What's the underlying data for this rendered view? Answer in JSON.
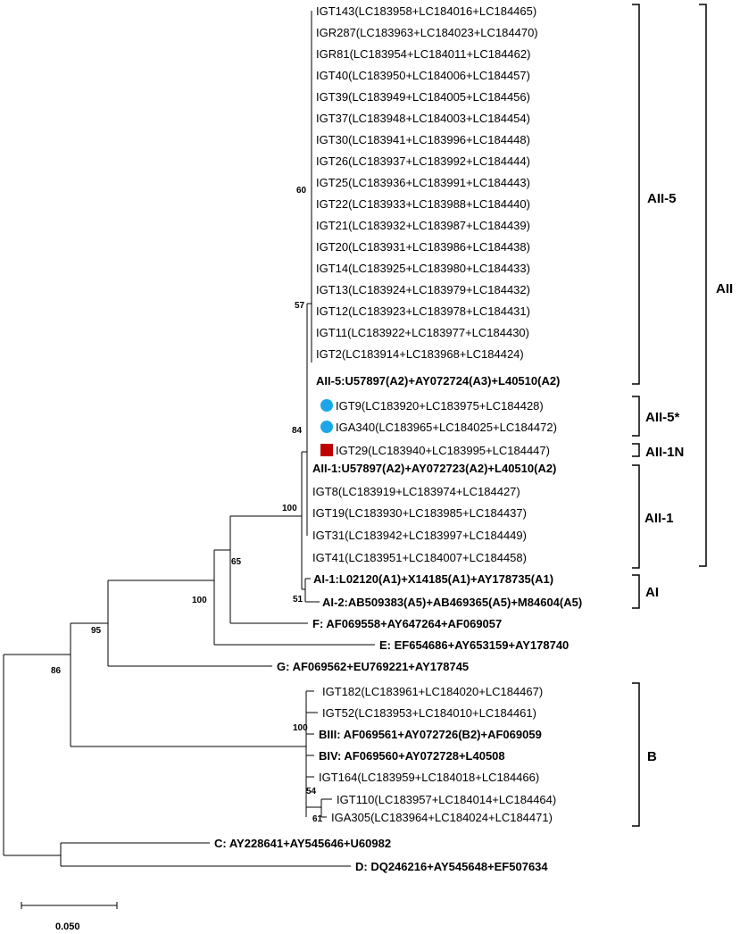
{
  "tree": {
    "leaves": [
      {
        "label": "IGT143(LC183958+LC184016+LC184465)",
        "bold": false
      },
      {
        "label": "IGR287(LC183963+LC184023+LC184470)",
        "bold": false
      },
      {
        "label": "IGR81(LC183954+LC184011+LC184462)",
        "bold": false
      },
      {
        "label": "IGT40(LC183950+LC184006+LC184457)",
        "bold": false
      },
      {
        "label": "IGT39(LC183949+LC184005+LC184456)",
        "bold": false
      },
      {
        "label": "IGT37(LC183948+LC184003+LC184454)",
        "bold": false
      },
      {
        "label": "IGT30(LC183941+LC183996+LC184448)",
        "bold": false
      },
      {
        "label": "IGT26(LC183937+LC183992+LC184444)",
        "bold": false
      },
      {
        "label": "IGT25(LC183936+LC183991+LC184443)",
        "bold": false
      },
      {
        "label": "IGT22(LC183933+LC183988+LC184440)",
        "bold": false
      },
      {
        "label": "IGT21(LC183932+LC183987+LC184439)",
        "bold": false
      },
      {
        "label": "IGT20(LC183931+LC183986+LC184438)",
        "bold": false
      },
      {
        "label": "IGT14(LC183925+LC183980+LC184433)",
        "bold": false
      },
      {
        "label": "IGT13(LC183924+LC183979+LC184432)",
        "bold": false
      },
      {
        "label": "IGT12(LC183923+LC183978+LC184431)",
        "bold": false
      },
      {
        "label": "IGT11(LC183922+LC183977+LC184430)",
        "bold": false
      },
      {
        "label": "IGT2(LC183914+LC183968+LC184424)",
        "bold": false
      },
      {
        "label": "AII-5:U57897(A2)+AY072724(A3)+L40510(A2)",
        "bold": true
      },
      {
        "label": "IGT9(LC183920+LC183975+LC184428)",
        "bold": false,
        "marker": "circle"
      },
      {
        "label": "IGA340(LC183965+LC184025+LC184472)",
        "bold": false,
        "marker": "circle"
      },
      {
        "label": "IGT29(LC183940+LC183995+LC184447)",
        "bold": false,
        "marker": "square"
      },
      {
        "label": "AII-1:U57897(A2)+AY072723(A2)+L40510(A2)",
        "bold": true
      },
      {
        "label": "IGT8(LC183919+LC183974+LC184427)",
        "bold": false
      },
      {
        "label": "IGT19(LC183930+LC183985+LC184437)",
        "bold": false
      },
      {
        "label": "IGT31(LC183942+LC183997+LC184449)",
        "bold": false
      },
      {
        "label": "IGT41(LC183951+LC184007+LC184458)",
        "bold": false
      },
      {
        "label": "AI-1:L02120(A1)+X14185(A1)+AY178735(A1)",
        "bold": true
      },
      {
        "label": "AI-2:AB509383(A5)+AB469365(A5)+M84604(A5)",
        "bold": true
      },
      {
        "label": "F: AF069558+AY647264+AF069057",
        "bold": true
      },
      {
        "label": "E: EF654686+AY653159+AY178740",
        "bold": true
      },
      {
        "label": "G: AF069562+EU769221+AY178745",
        "bold": true
      },
      {
        "label": "IGT182(LC183961+LC184020+LC184467)",
        "bold": false
      },
      {
        "label": "IGT52(LC183953+LC184010+LC184461)",
        "bold": false
      },
      {
        "label": "BIII: AF069561+AY072726(B2)+AF069059",
        "bold": true
      },
      {
        "label": "BIV: AF069560+AY072728+L40508",
        "bold": true
      },
      {
        "label": "IGT164(LC183959+LC184018+LC184466)",
        "bold": false
      },
      {
        "label": "IGT110(LC183957+LC184014+LC184464)",
        "bold": false
      },
      {
        "label": "IGA305(LC183964+LC184024+LC184471)",
        "bold": false
      },
      {
        "label": "C: AY228641+AY545646+U60982",
        "bold": true
      },
      {
        "label": "D: DQ246216+AY545648+EF507634",
        "bold": true
      }
    ],
    "bootstrap": [
      "60",
      "57",
      "84",
      "100",
      "65",
      "51",
      "100",
      "95",
      "86",
      "100",
      "54",
      "61"
    ],
    "clades": [
      "AII-5",
      "AII-5*",
      "AII-1N",
      "AII-1",
      "AI",
      "AII",
      "B"
    ],
    "scale_bar": "0.050"
  },
  "colors": {
    "line": "#000000",
    "circle_marker": "#1ba6e8",
    "square_marker": "#c00000"
  }
}
